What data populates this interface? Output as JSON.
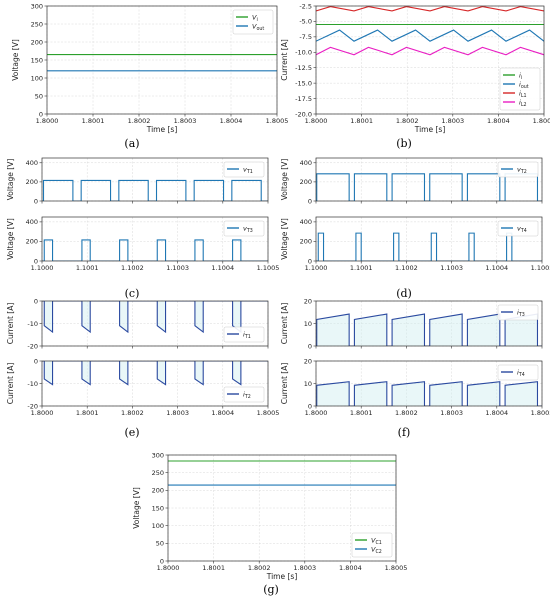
{
  "charts": [
    {
      "id": "a",
      "caption": "(a)",
      "type": "line",
      "ylabel": "Voltage [V]",
      "xlabel": "Time [s]",
      "xlim": [
        1.8,
        1.8005
      ],
      "ylim": [
        0,
        300
      ],
      "xticks": [
        "1.8000",
        "1.8001",
        "1.8002",
        "1.8003",
        "1.8004",
        "1.8005"
      ],
      "yticks": [
        "0",
        "50",
        "100",
        "150",
        "200",
        "250",
        "300"
      ],
      "legend_position": "top-right",
      "grid": true,
      "series": [
        {
          "name": "V_i",
          "label_main": "V",
          "label_sub": "i",
          "color": "#2ca02c",
          "kind": "const",
          "value": 165
        },
        {
          "name": "V_out",
          "label_main": "V",
          "label_sub": "out",
          "color": "#1f77b4",
          "kind": "const",
          "value": 120
        }
      ]
    },
    {
      "id": "b",
      "caption": "(b)",
      "type": "line",
      "ylabel": "Current [A]",
      "xlabel": "Time [s]",
      "xlim": [
        1.8,
        1.8005
      ],
      "ylim": [
        -20,
        -2.5
      ],
      "xticks": [
        "1.8000",
        "1.8001",
        "1.8002",
        "1.8003",
        "1.8004",
        "1.8005"
      ],
      "yticks": [
        "-2.5",
        "-5.0",
        "-7.5",
        "-10.0",
        "-12.5",
        "-15.0",
        "-17.5",
        "-20.0"
      ],
      "legend_position": "bottom-right",
      "grid": true,
      "series": [
        {
          "name": "i_i",
          "label_main": "i",
          "label_sub": "i",
          "color": "#2ca02c",
          "kind": "const",
          "value": -5.5
        },
        {
          "name": "i_out",
          "label_main": "i",
          "label_sub": "out",
          "color": "#1f77b4",
          "kind": "ripple",
          "min": -8.2,
          "max": -6.4,
          "rise_fraction": 0.62,
          "phase": 0.0
        },
        {
          "name": "i_L1",
          "label_main": "i",
          "label_sub": "L1",
          "color": "#d62728",
          "kind": "ripple",
          "min": -3.3,
          "max": -2.6,
          "rise_fraction": 0.38,
          "phase": 0.0
        },
        {
          "name": "i_L2",
          "label_main": "i",
          "label_sub": "L2",
          "color": "#e91ec3",
          "kind": "ripple",
          "min": -10.4,
          "max": -9.2,
          "rise_fraction": 0.38,
          "phase": 0.0
        }
      ]
    },
    {
      "id": "c1",
      "caption": "",
      "type": "line",
      "ylabel": "Voltage [V]",
      "xlabel": "",
      "xlim": [
        1.1,
        1.1005
      ],
      "ylim": [
        0,
        450
      ],
      "xticks": [],
      "yticks": [
        "0",
        "200",
        "400"
      ],
      "legend_position": "top-right",
      "grid": true,
      "series": [
        {
          "name": "v_T1",
          "label_main": "v",
          "label_sub": "T1",
          "color": "#1f77b4",
          "kind": "pulse",
          "high": 215,
          "low": 0,
          "duty": 0.78,
          "phase": 0.04
        }
      ]
    },
    {
      "id": "c2",
      "caption": "(c)",
      "type": "line",
      "ylabel": "Voltage [V]",
      "xlabel": "",
      "xlim": [
        1.1,
        1.1005
      ],
      "ylim": [
        0,
        450
      ],
      "xticks": [
        "1.1000",
        "1.1001",
        "1.1002",
        "1.1003",
        "1.1004",
        "1.1005"
      ],
      "yticks": [
        "0",
        "200",
        "400"
      ],
      "legend_position": "top-right",
      "grid": true,
      "series": [
        {
          "name": "v_T3",
          "label_main": "v",
          "label_sub": "T3",
          "color": "#1f77b4",
          "kind": "pulse",
          "high": 215,
          "low": 0,
          "duty": 0.22,
          "phase": 0.06
        }
      ]
    },
    {
      "id": "d1",
      "caption": "",
      "type": "line",
      "ylabel": "Voltage [V]",
      "xlabel": "",
      "xlim": [
        1.1,
        1.1005
      ],
      "ylim": [
        0,
        450
      ],
      "xticks": [],
      "yticks": [
        "0",
        "200",
        "400"
      ],
      "legend_position": "top-right",
      "grid": true,
      "series": [
        {
          "name": "v_T2",
          "label_main": "v",
          "label_sub": "T2",
          "color": "#1f77b4",
          "kind": "pulse",
          "high": 285,
          "low": 0,
          "duty": 0.86,
          "phase": 0.02
        }
      ]
    },
    {
      "id": "d2",
      "caption": "(d)",
      "type": "line",
      "ylabel": "Voltage [V]",
      "xlabel": "",
      "xlim": [
        1.1,
        1.1005
      ],
      "ylim": [
        0,
        450
      ],
      "xticks": [
        "1.1000",
        "1.1001",
        "1.1002",
        "1.1003",
        "1.1004",
        "1.1005"
      ],
      "yticks": [
        "0",
        "200",
        "400"
      ],
      "legend_position": "top-right",
      "grid": true,
      "series": [
        {
          "name": "v_T4",
          "label_main": "v",
          "label_sub": "T4",
          "color": "#1f77b4",
          "kind": "pulse",
          "high": 285,
          "low": 0,
          "duty": 0.14,
          "phase": 0.06
        }
      ]
    },
    {
      "id": "e1",
      "caption": "",
      "type": "line",
      "ylabel": "Current [A]",
      "xlabel": "",
      "xlim": [
        1.8,
        1.8005
      ],
      "ylim": [
        -20,
        0
      ],
      "xticks": [],
      "yticks": [
        "0",
        "-10",
        "-20"
      ],
      "legend_position": "bottom-right",
      "grid": true,
      "series": [
        {
          "name": "i_T1",
          "label_main": "i",
          "label_sub": "T1",
          "color": "#2b4aa0",
          "kind": "sawpulse",
          "start": -11.0,
          "end": -13.8,
          "duty": 0.22,
          "phase": 0.06,
          "fill": true
        }
      ]
    },
    {
      "id": "e2",
      "caption": "(e)",
      "type": "line",
      "ylabel": "Current [A]",
      "xlabel": "",
      "xlim": [
        1.8,
        1.8005
      ],
      "ylim": [
        -20,
        0
      ],
      "xticks": [
        "1.8000",
        "1.8001",
        "1.8002",
        "1.8003",
        "1.8004",
        "1.8005"
      ],
      "yticks": [
        "0",
        "-10",
        "-20"
      ],
      "legend_position": "bottom-right",
      "grid": true,
      "series": [
        {
          "name": "i_T2",
          "label_main": "i",
          "label_sub": "T2",
          "color": "#2b4aa0",
          "kind": "sawpulse",
          "start": -8.0,
          "end": -10.5,
          "duty": 0.22,
          "phase": 0.06,
          "fill": true
        }
      ]
    },
    {
      "id": "f1",
      "caption": "",
      "type": "line",
      "ylabel": "Current [A]",
      "xlabel": "",
      "xlim": [
        1.8,
        1.8005
      ],
      "ylim": [
        0,
        20
      ],
      "xticks": [],
      "yticks": [
        "0",
        "10",
        "20"
      ],
      "legend_position": "top-right",
      "grid": true,
      "series": [
        {
          "name": "i_T3",
          "label_main": "i",
          "label_sub": "T3",
          "color": "#2b4aa0",
          "kind": "sawpulse",
          "start": 11.8,
          "end": 14.2,
          "duty": 0.86,
          "phase": 0.02,
          "fill": true
        }
      ]
    },
    {
      "id": "f2",
      "caption": "(f)",
      "type": "line",
      "ylabel": "Current [A]",
      "xlabel": "",
      "xlim": [
        1.8,
        1.8005
      ],
      "ylim": [
        0,
        20
      ],
      "xticks": [
        "1.8000",
        "1.8001",
        "1.8002",
        "1.8003",
        "1.8004",
        "1.8005"
      ],
      "yticks": [
        "0",
        "10",
        "20"
      ],
      "legend_position": "top-right",
      "grid": true,
      "series": [
        {
          "name": "i_T4",
          "label_main": "i",
          "label_sub": "T4",
          "color": "#2b4aa0",
          "kind": "sawpulse",
          "start": 9.2,
          "end": 10.8,
          "duty": 0.86,
          "phase": 0.02,
          "fill": true
        }
      ]
    },
    {
      "id": "g",
      "caption": "(g)",
      "type": "line",
      "ylabel": "Voltage [V]",
      "xlabel": "Time [s]",
      "xlim": [
        1.8,
        1.8005
      ],
      "ylim": [
        0,
        300
      ],
      "xticks": [
        "1.8000",
        "1.8001",
        "1.8002",
        "1.8003",
        "1.8004",
        "1.8005"
      ],
      "yticks": [
        "0",
        "50",
        "100",
        "150",
        "200",
        "250",
        "300"
      ],
      "legend_position": "bottom-right",
      "grid": true,
      "series": [
        {
          "name": "V_C1",
          "label_main": "V",
          "label_sub": "C1",
          "color": "#2ca02c",
          "kind": "const",
          "value": 283
        },
        {
          "name": "V_C2",
          "label_main": "V",
          "label_sub": "C2",
          "color": "#1f77b4",
          "kind": "const",
          "value": 215
        }
      ]
    }
  ],
  "periods_per_window": 6
}
